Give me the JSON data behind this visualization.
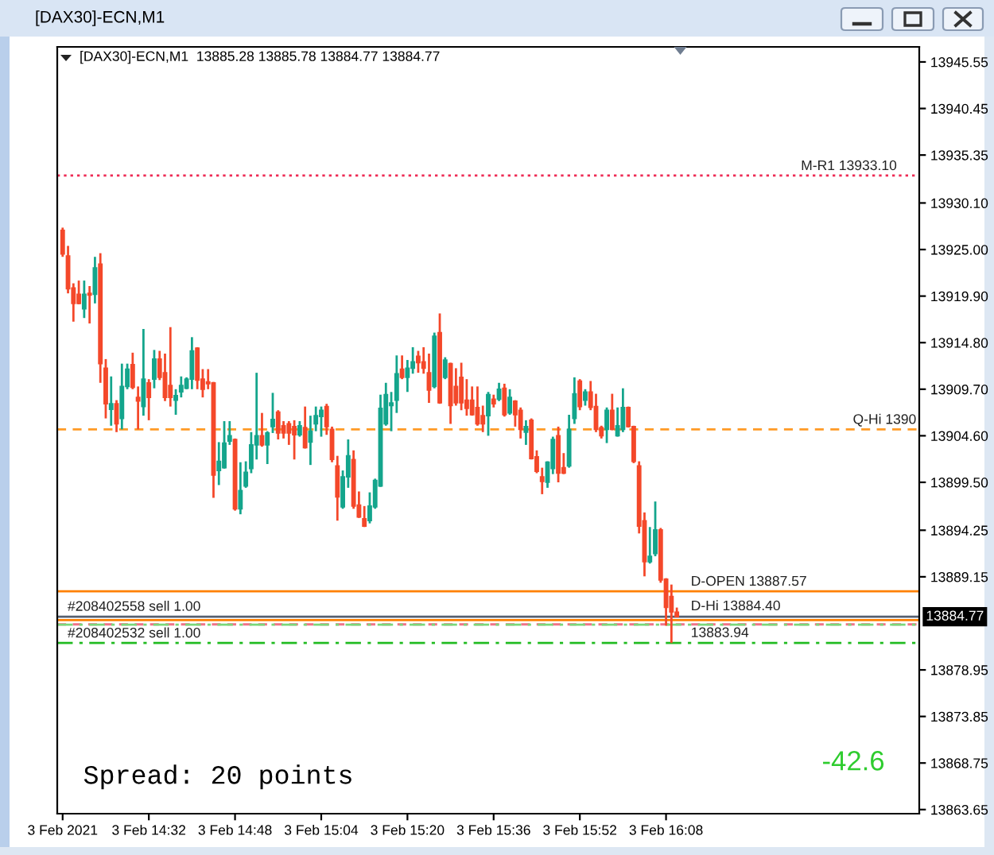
{
  "chart_data": {
    "type": "candlestick",
    "title": "[DAX30]-ECN,M1",
    "subtitle": "[DAX30]-ECN,M1  13885.28 13885.78 13884.77 13884.77",
    "x": [
      "2021-02-03T14:16",
      "2021-02-03T14:17",
      "2021-02-03T14:18",
      "2021-02-03T14:19",
      "2021-02-03T14:20",
      "2021-02-03T14:21",
      "2021-02-03T14:22",
      "2021-02-03T14:23",
      "2021-02-03T14:24",
      "2021-02-03T14:25",
      "2021-02-03T14:26",
      "2021-02-03T14:27",
      "2021-02-03T14:28",
      "2021-02-03T14:29",
      "2021-02-03T14:30",
      "2021-02-03T14:31",
      "2021-02-03T14:32",
      "2021-02-03T14:33",
      "2021-02-03T14:34",
      "2021-02-03T14:35",
      "2021-02-03T14:36",
      "2021-02-03T14:37",
      "2021-02-03T14:38",
      "2021-02-03T14:39",
      "2021-02-03T14:40",
      "2021-02-03T14:41",
      "2021-02-03T14:42",
      "2021-02-03T14:43",
      "2021-02-03T14:44",
      "2021-02-03T14:45",
      "2021-02-03T14:46",
      "2021-02-03T14:47",
      "2021-02-03T14:48",
      "2021-02-03T14:49",
      "2021-02-03T14:50",
      "2021-02-03T14:51",
      "2021-02-03T14:52",
      "2021-02-03T14:53",
      "2021-02-03T14:54",
      "2021-02-03T14:55",
      "2021-02-03T14:56",
      "2021-02-03T14:57",
      "2021-02-03T14:58",
      "2021-02-03T14:59",
      "2021-02-03T15:00",
      "2021-02-03T15:01",
      "2021-02-03T15:02",
      "2021-02-03T15:03",
      "2021-02-03T15:04",
      "2021-02-03T15:05",
      "2021-02-03T15:06",
      "2021-02-03T15:07",
      "2021-02-03T15:08",
      "2021-02-03T15:09",
      "2021-02-03T15:10",
      "2021-02-03T15:11",
      "2021-02-03T15:12",
      "2021-02-03T15:13",
      "2021-02-03T15:14",
      "2021-02-03T15:15",
      "2021-02-03T15:16",
      "2021-02-03T15:17",
      "2021-02-03T15:18",
      "2021-02-03T15:19",
      "2021-02-03T15:20",
      "2021-02-03T15:21",
      "2021-02-03T15:22",
      "2021-02-03T15:23",
      "2021-02-03T15:24",
      "2021-02-03T15:25",
      "2021-02-03T15:26",
      "2021-02-03T15:27",
      "2021-02-03T15:28",
      "2021-02-03T15:29",
      "2021-02-03T15:30",
      "2021-02-03T15:31",
      "2021-02-03T15:32",
      "2021-02-03T15:33",
      "2021-02-03T15:34",
      "2021-02-03T15:35",
      "2021-02-03T15:36",
      "2021-02-03T15:37",
      "2021-02-03T15:38",
      "2021-02-03T15:39",
      "2021-02-03T15:40",
      "2021-02-03T15:41",
      "2021-02-03T15:42",
      "2021-02-03T15:43",
      "2021-02-03T15:44",
      "2021-02-03T15:45",
      "2021-02-03T15:46",
      "2021-02-03T15:47",
      "2021-02-03T15:48",
      "2021-02-03T15:49",
      "2021-02-03T15:50",
      "2021-02-03T15:51",
      "2021-02-03T15:52",
      "2021-02-03T15:53",
      "2021-02-03T15:54",
      "2021-02-03T15:55",
      "2021-02-03T15:56",
      "2021-02-03T15:57",
      "2021-02-03T15:58",
      "2021-02-03T15:59",
      "2021-02-03T16:00",
      "2021-02-03T16:01",
      "2021-02-03T16:02",
      "2021-02-03T16:03",
      "2021-02-03T16:04",
      "2021-02-03T16:05",
      "2021-02-03T16:06",
      "2021-02-03T16:07",
      "2021-02-03T16:08",
      "2021-02-03T16:09",
      "2021-02-03T16:10"
    ],
    "ohlc": [
      [
        13927.1,
        13927.4,
        13924.2,
        13924.5
      ],
      [
        13924.3,
        13925.4,
        13920.2,
        13920.7
      ],
      [
        13920.8,
        13921.3,
        13917.1,
        13919.1
      ],
      [
        13920.1,
        13921.6,
        13919.0,
        13919.1
      ],
      [
        13918.5,
        13921.6,
        13917.5,
        13920.1
      ],
      [
        13920.2,
        13921.0,
        13916.9,
        13920.0
      ],
      [
        13920.1,
        13924.2,
        13919.1,
        13923.0
      ],
      [
        13923.4,
        13924.6,
        13910.4,
        13912.5
      ],
      [
        13912.0,
        13913.0,
        13906.5,
        13908.1
      ],
      [
        13907.5,
        13911.1,
        13905.7,
        13908.1
      ],
      [
        13908.1,
        13908.5,
        13905.0,
        13905.9
      ],
      [
        13906.5,
        13912.5,
        13905.3,
        13910.0
      ],
      [
        13910.0,
        13912.5,
        13909.7,
        13911.9
      ],
      [
        13912.4,
        13913.7,
        13909.7,
        13909.9
      ],
      [
        13908.8,
        13910.0,
        13905.3,
        13908.4
      ],
      [
        13907.8,
        13916.3,
        13906.8,
        13910.8
      ],
      [
        13910.4,
        13910.8,
        13906.3,
        13908.8
      ],
      [
        13910.8,
        13914.0,
        13909.8,
        13913.0
      ],
      [
        13913.0,
        13913.9,
        13910.7,
        13911.0
      ],
      [
        13911.5,
        13913.6,
        13908.4,
        13908.8
      ],
      [
        13910.1,
        13916.5,
        13907.8,
        13908.8
      ],
      [
        13908.5,
        13909.7,
        13906.9,
        13909.0
      ],
      [
        13909.4,
        13911.1,
        13908.8,
        13910.1
      ],
      [
        13909.8,
        13911.0,
        13909.7,
        13910.8
      ],
      [
        13910.8,
        13915.4,
        13909.7,
        13913.9
      ],
      [
        13914.2,
        13914.3,
        13909.7,
        13910.7
      ],
      [
        13910.8,
        13911.9,
        13908.8,
        13909.7
      ],
      [
        13910.5,
        13911.9,
        13909.7,
        13910.3
      ],
      [
        13910.4,
        13910.5,
        13897.8,
        13900.3
      ],
      [
        13900.8,
        13903.9,
        13899.2,
        13901.8
      ],
      [
        13901.1,
        13906.2,
        13901.0,
        13903.8
      ],
      [
        13904.0,
        13906.2,
        13903.6,
        13904.6
      ],
      [
        13904.2,
        13904.3,
        13896.4,
        13896.6
      ],
      [
        13896.6,
        13901.7,
        13896.0,
        13898.6
      ],
      [
        13899.1,
        13901.8,
        13898.9,
        13900.6
      ],
      [
        13901.0,
        13905.0,
        13900.5,
        13903.6
      ],
      [
        13903.6,
        13911.5,
        13902.0,
        13904.6
      ],
      [
        13904.6,
        13907.1,
        13903.4,
        13903.6
      ],
      [
        13903.6,
        13905.1,
        13901.5,
        13904.9
      ],
      [
        13905.6,
        13909.3,
        13904.9,
        13906.4
      ],
      [
        13907.2,
        13907.4,
        13904.2,
        13904.9
      ],
      [
        13905.7,
        13906.2,
        13904.3,
        13904.9
      ],
      [
        13905.9,
        13906.2,
        13903.6,
        13904.9
      ],
      [
        13905.6,
        13906.3,
        13902.0,
        13904.7
      ],
      [
        13904.7,
        13906.2,
        13904.5,
        13905.7
      ],
      [
        13905.5,
        13907.8,
        13903.2,
        13903.3
      ],
      [
        13903.9,
        13906.8,
        13901.4,
        13905.1
      ],
      [
        13905.9,
        13907.8,
        13905.1,
        13906.8
      ],
      [
        13906.7,
        13907.8,
        13904.5,
        13907.4
      ],
      [
        13907.8,
        13908.1,
        13904.7,
        13905.6
      ],
      [
        13905.3,
        13905.6,
        13901.7,
        13902.0
      ],
      [
        13901.3,
        13902.4,
        13895.3,
        13897.9
      ],
      [
        13896.8,
        13900.8,
        13896.6,
        13900.1
      ],
      [
        13900.1,
        13904.2,
        13898.9,
        13902.4
      ],
      [
        13902.0,
        13903.0,
        13896.6,
        13896.9
      ],
      [
        13897.0,
        13898.5,
        13895.6,
        13895.7
      ],
      [
        13895.5,
        13896.9,
        13894.6,
        13894.7
      ],
      [
        13895.3,
        13898.4,
        13895.0,
        13896.9
      ],
      [
        13896.8,
        13899.9,
        13896.6,
        13899.7
      ],
      [
        13899.1,
        13909.1,
        13899.0,
        13907.6
      ],
      [
        13905.9,
        13910.4,
        13905.7,
        13909.1
      ],
      [
        13907.9,
        13909.4,
        13905.1,
        13908.2
      ],
      [
        13908.5,
        13913.4,
        13907.1,
        13911.4
      ],
      [
        13911.9,
        13913.4,
        13910.8,
        13911.0
      ],
      [
        13911.0,
        13912.9,
        13909.4,
        13912.0
      ],
      [
        13912.0,
        13914.3,
        13911.4,
        13912.7
      ],
      [
        13913.3,
        13913.9,
        13911.5,
        13912.6
      ],
      [
        13912.7,
        13914.3,
        13911.4,
        13912.0
      ],
      [
        13911.5,
        13913.6,
        13908.2,
        13909.6
      ],
      [
        13910.0,
        13915.9,
        13909.8,
        13915.5
      ],
      [
        13915.9,
        13918.0,
        13908.1,
        13908.2
      ],
      [
        13911.0,
        13913.2,
        13910.8,
        13912.9
      ],
      [
        13912.5,
        13912.6,
        13905.9,
        13907.9
      ],
      [
        13910.0,
        13912.0,
        13907.9,
        13908.2
      ],
      [
        13911.0,
        13912.6,
        13907.4,
        13908.2
      ],
      [
        13908.5,
        13910.8,
        13906.8,
        13907.6
      ],
      [
        13908.5,
        13910.0,
        13906.8,
        13906.9
      ],
      [
        13907.7,
        13910.0,
        13905.7,
        13905.9
      ],
      [
        13906.8,
        13907.9,
        13905.0,
        13905.9
      ],
      [
        13906.8,
        13909.4,
        13904.6,
        13909.1
      ],
      [
        13908.6,
        13909.1,
        13907.7,
        13908.1
      ],
      [
        13908.6,
        13910.4,
        13908.4,
        13909.7
      ],
      [
        13909.8,
        13910.3,
        13906.7,
        13906.9
      ],
      [
        13907.1,
        13909.7,
        13906.9,
        13908.8
      ],
      [
        13908.4,
        13908.5,
        13905.6,
        13906.9
      ],
      [
        13907.4,
        13907.7,
        13904.3,
        13905.3
      ],
      [
        13905.0,
        13906.3,
        13903.6,
        13905.6
      ],
      [
        13906.3,
        13906.5,
        13902.0,
        13902.1
      ],
      [
        13902.3,
        13903.0,
        13900.5,
        13900.7
      ],
      [
        13900.1,
        13901.1,
        13898.2,
        13899.6
      ],
      [
        13899.5,
        13901.8,
        13898.9,
        13901.7
      ],
      [
        13901.0,
        13904.5,
        13900.4,
        13904.2
      ],
      [
        13904.6,
        13905.6,
        13899.5,
        13900.5
      ],
      [
        13901.1,
        13902.7,
        13900.4,
        13900.5
      ],
      [
        13901.3,
        13906.9,
        13901.1,
        13905.3
      ],
      [
        13906.5,
        13911.0,
        13905.9,
        13909.2
      ],
      [
        13910.6,
        13910.8,
        13907.4,
        13907.8
      ],
      [
        13908.5,
        13909.7,
        13907.9,
        13909.4
      ],
      [
        13909.4,
        13910.6,
        13907.4,
        13907.7
      ],
      [
        13907.8,
        13909.2,
        13905.0,
        13905.3
      ],
      [
        13905.5,
        13905.7,
        13904.3,
        13904.6
      ],
      [
        13905.3,
        13907.7,
        13903.8,
        13907.4
      ],
      [
        13907.4,
        13909.2,
        13905.2,
        13905.3
      ],
      [
        13904.6,
        13907.7,
        13904.5,
        13905.7
      ],
      [
        13905.3,
        13909.8,
        13905.0,
        13907.7
      ],
      [
        13907.7,
        13907.8,
        13905.5,
        13905.6
      ],
      [
        13905.6,
        13905.7,
        13901.6,
        13901.8
      ],
      [
        13901.3,
        13901.8,
        13893.9,
        13894.7
      ],
      [
        13895.3,
        13896.2,
        13889.2,
        13890.8
      ],
      [
        13890.8,
        13894.6,
        13890.6,
        13891.4
      ],
      [
        13891.7,
        13897.4,
        13891.4,
        13894.3
      ],
      [
        13894.3,
        13894.5,
        13888.5,
        13888.8
      ],
      [
        13888.9,
        13889.0,
        13883.8,
        13885.8
      ],
      [
        13887.0,
        13888.3,
        13881.9,
        13885.3
      ],
      [
        13885.28,
        13885.78,
        13884.77,
        13884.77
      ]
    ],
    "colors": [
      "#f4482a",
      "#f4482a",
      "#f4482a",
      "#f4482a",
      "#14a58c",
      "#f4482a",
      "#14a58c",
      "#f4482a",
      "#f4482a",
      "#14a58c",
      "#f4482a",
      "#14a58c",
      "#14a58c",
      "#f4482a",
      "#f4482a",
      "#14a58c",
      "#f4482a",
      "#14a58c",
      "#f4482a",
      "#f4482a",
      "#f4482a",
      "#14a58c",
      "#14a58c",
      "#14a58c",
      "#14a58c",
      "#f4482a",
      "#f4482a",
      "#f4482a",
      "#f4482a",
      "#14a58c",
      "#14a58c",
      "#14a58c",
      "#f4482a",
      "#14a58c",
      "#14a58c",
      "#14a58c",
      "#14a58c",
      "#f4482a",
      "#14a58c",
      "#14a58c",
      "#f4482a",
      "#f4482a",
      "#f4482a",
      "#f4482a",
      "#14a58c",
      "#f4482a",
      "#14a58c",
      "#14a58c",
      "#14a58c",
      "#f4482a",
      "#f4482a",
      "#f4482a",
      "#14a58c",
      "#14a58c",
      "#f4482a",
      "#f4482a",
      "#f4482a",
      "#14a58c",
      "#14a58c",
      "#14a58c",
      "#14a58c",
      "#14a58c",
      "#14a58c",
      "#f4482a",
      "#14a58c",
      "#14a58c",
      "#f4482a",
      "#f4482a",
      "#f4482a",
      "#14a58c",
      "#f4482a",
      "#14a58c",
      "#f4482a",
      "#f4482a",
      "#f4482a",
      "#f4482a",
      "#f4482a",
      "#f4482a",
      "#f4482a",
      "#14a58c",
      "#f4482a",
      "#14a58c",
      "#f4482a",
      "#14a58c",
      "#f4482a",
      "#f4482a",
      "#14a58c",
      "#f4482a",
      "#f4482a",
      "#f4482a",
      "#14a58c",
      "#14a58c",
      "#f4482a",
      "#f4482a",
      "#14a58c",
      "#14a58c",
      "#f4482a",
      "#14a58c",
      "#f4482a",
      "#f4482a",
      "#f4482a",
      "#14a58c",
      "#f4482a",
      "#14a58c",
      "#14a58c",
      "#f4482a",
      "#f4482a",
      "#f4482a",
      "#f4482a",
      "#14a58c",
      "#14a58c",
      "#f4482a",
      "#f4482a",
      "#f4482a",
      "#f4482a"
    ],
    "xlim": [
      "2021-02-03T14:15",
      "2021-02-03T16:55"
    ],
    "xticks": [
      {
        "value": "2021-02-03T14:16",
        "label": "3 Feb 2021"
      },
      {
        "value": "2021-02-03T14:32",
        "label": "3 Feb 14:32"
      },
      {
        "value": "2021-02-03T14:48",
        "label": "3 Feb 14:48"
      },
      {
        "value": "2021-02-03T15:04",
        "label": "3 Feb 15:04"
      },
      {
        "value": "2021-02-03T15:20",
        "label": "3 Feb 15:20"
      },
      {
        "value": "2021-02-03T15:36",
        "label": "3 Feb 15:36"
      },
      {
        "value": "2021-02-03T15:52",
        "label": "3 Feb 15:52"
      },
      {
        "value": "2021-02-03T16:08",
        "label": "3 Feb 16:08"
      }
    ],
    "ylim": [
      13863.2,
      13947.2
    ],
    "yticks": [
      {
        "value": 13945.55,
        "label": "13945.55"
      },
      {
        "value": 13940.45,
        "label": "13940.45"
      },
      {
        "value": 13935.35,
        "label": "13935.35"
      },
      {
        "value": 13930.1,
        "label": "13930.10"
      },
      {
        "value": 13925.0,
        "label": "13925.00"
      },
      {
        "value": 13919.9,
        "label": "13919.90"
      },
      {
        "value": 13914.8,
        "label": "13914.80"
      },
      {
        "value": 13909.7,
        "label": "13909.70"
      },
      {
        "value": 13904.6,
        "label": "13904.60"
      },
      {
        "value": 13899.5,
        "label": "13899.50"
      },
      {
        "value": 13894.25,
        "label": "13894.25"
      },
      {
        "value": 13889.15,
        "label": "13889.15"
      },
      {
        "value": 13878.95,
        "label": "13878.95"
      },
      {
        "value": 13873.85,
        "label": "13873.85"
      },
      {
        "value": 13868.75,
        "label": "13868.75"
      },
      {
        "value": 13863.65,
        "label": "13863.65"
      }
    ],
    "ref_lines": [
      {
        "axis": "y",
        "value": 13933.1,
        "label": "M-R1 13933.10",
        "color": "#ee2b55",
        "line_style": "dotted"
      },
      {
        "axis": "y",
        "value": 13905.3,
        "label": "Q-Hi 1390",
        "color": "#ff9a26",
        "line_style": "dashed"
      },
      {
        "axis": "y",
        "value": 13887.57,
        "label": "D-OPEN 13887.57",
        "color": "#ff8000",
        "line_style": "solid"
      },
      {
        "axis": "y",
        "value": 13884.77,
        "label": "13884.77",
        "color": "#566070",
        "line_style": "solid"
      },
      {
        "axis": "y",
        "value": 13884.4,
        "label": "D-Hi 13884.40",
        "color": "#ff8000",
        "line_style": "solid"
      },
      {
        "axis": "y",
        "value": 13883.94,
        "label": "13883.94",
        "color": "#f07288",
        "line_style": "dashed"
      },
      {
        "axis": "y",
        "value": 13883.9,
        "label": "#208402558 sell 1.00",
        "color": "#7ad87a",
        "line_style": "dashdot"
      },
      {
        "axis": "y",
        "value": 13881.9,
        "label": "#208402532 sell 1.00",
        "color": "#22bb22",
        "line_style": "dashdot"
      }
    ],
    "annotations": [
      "Spread: 20 points",
      "-42.6"
    ]
  }
}
